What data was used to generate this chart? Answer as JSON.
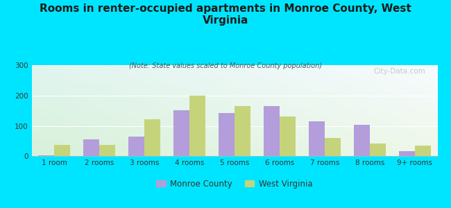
{
  "title": "Rooms in renter-occupied apartments in Monroe County, West\nVirginia",
  "subtitle": "(Note: State values scaled to Monroe County population)",
  "categories": [
    "1 room",
    "2 rooms",
    "3 rooms",
    "4 rooms",
    "5 rooms",
    "6 rooms",
    "7 rooms",
    "8 rooms",
    "9+ rooms"
  ],
  "monroe_values": [
    2,
    55,
    65,
    152,
    142,
    165,
    115,
    104,
    17
  ],
  "wv_values": [
    37,
    37,
    122,
    200,
    165,
    132,
    60,
    42,
    35
  ],
  "monroe_color": "#b39ddb",
  "wv_color": "#c5d47a",
  "background_outer": "#00e5ff",
  "ylim": [
    0,
    300
  ],
  "yticks": [
    0,
    100,
    200,
    300
  ],
  "watermark": "City-Data.com",
  "legend_monroe": "Monroe County",
  "legend_wv": "West Virginia",
  "title_fontsize": 11,
  "subtitle_fontsize": 7,
  "tick_fontsize": 7.5,
  "legend_fontsize": 8.5
}
